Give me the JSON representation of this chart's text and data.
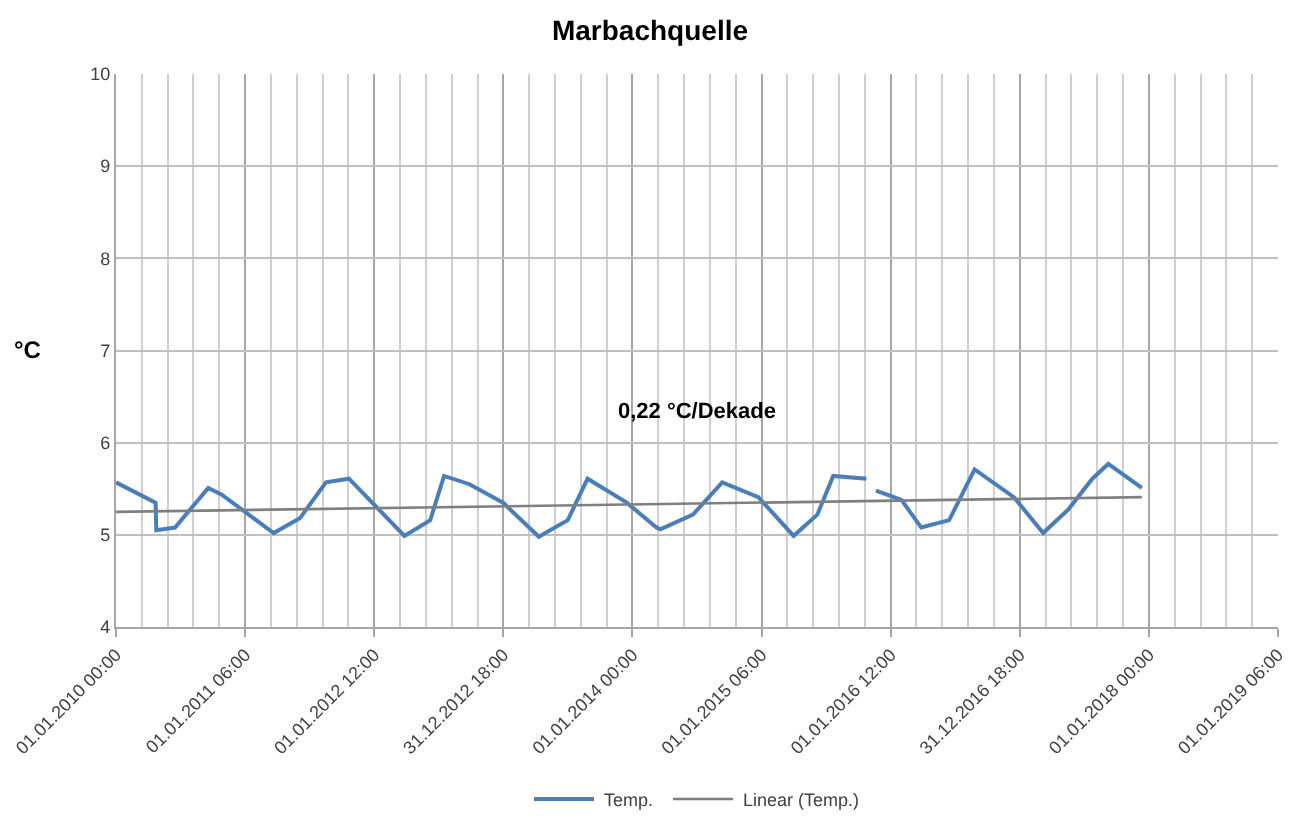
{
  "chart_data": {
    "type": "line",
    "title": "Marbachquelle",
    "ylabel": "°C",
    "xlim": [
      "2010-01-01T00:00",
      "2019-01-01T06:00"
    ],
    "xticks": [
      {
        "value": "2010-01-01T00:00",
        "label": "01.01.2010 00:00"
      },
      {
        "value": "2011-01-01T06:00",
        "label": "01.01.2011 06:00"
      },
      {
        "value": "2012-01-01T12:00",
        "label": "01.01.2012 12:00"
      },
      {
        "value": "2012-12-31T18:00",
        "label": "31.12.2012 18:00"
      },
      {
        "value": "2014-01-01T00:00",
        "label": "01.01.2014 00:00"
      },
      {
        "value": "2015-01-01T06:00",
        "label": "01.01.2015 06:00"
      },
      {
        "value": "2016-01-01T12:00",
        "label": "01.01.2016 12:00"
      },
      {
        "value": "2016-12-31T18:00",
        "label": "31.12.2016 18:00"
      },
      {
        "value": "2018-01-01T00:00",
        "label": "01.01.2018 00:00"
      },
      {
        "value": "2019-01-01T06:00",
        "label": "01.01.2019 06:00"
      }
    ],
    "ylim": [
      4,
      10
    ],
    "yticks": [
      4,
      5,
      6,
      7,
      8,
      9,
      10
    ],
    "grid": true,
    "legend": "bottom",
    "marker": "none",
    "series": [
      {
        "name": "Temp.",
        "color": "#4a7ebb",
        "x": [
          "2010-01-01",
          "2010-04-23",
          "2010-04-25",
          "2010-06-17",
          "2010-09-19",
          "2010-10-26",
          "2011-03-23",
          "2011-06-05",
          "2011-08-18",
          "2011-10-22",
          "2012-03-27",
          "2012-06-08",
          "2012-07-17",
          "2012-09-27",
          "2012-12-31",
          "2013-04-11",
          "2013-07-02",
          "2013-08-27",
          "2013-12-16",
          "2014-03-10",
          "2014-03-21",
          "2014-06-21",
          "2014-09-12",
          "2014-12-23",
          "2015-04-02",
          "2015-06-08",
          "2015-07-23",
          "2015-10-25",
          "2015-11-05",
          "2015-11-21",
          "2016-02-01",
          "2016-03-28",
          "2016-06-15",
          "2016-08-26",
          "2016-12-15",
          "2017-03-08",
          "2017-05-19",
          "2017-07-25",
          "2017-09-08",
          "2017-12-12"
        ],
        "values": [
          5.57,
          5.35,
          5.05,
          5.08,
          5.51,
          5.44,
          5.02,
          5.18,
          5.57,
          5.61,
          4.99,
          5.16,
          5.64,
          5.55,
          5.35,
          4.98,
          5.16,
          5.61,
          5.35,
          5.08,
          5.06,
          5.22,
          5.57,
          5.41,
          4.99,
          5.22,
          5.64,
          5.61,
          null,
          5.48,
          5.38,
          5.08,
          5.16,
          5.71,
          5.41,
          5.02,
          5.28,
          5.61,
          5.77,
          5.51
        ]
      },
      {
        "name": "Linear (Temp.)",
        "color": "#7f7f7f",
        "x": [
          "2010-01-01",
          "2017-12-12"
        ],
        "values": [
          5.25,
          5.41
        ]
      }
    ],
    "annotations": [
      "0,22 °C/Dekade"
    ]
  }
}
